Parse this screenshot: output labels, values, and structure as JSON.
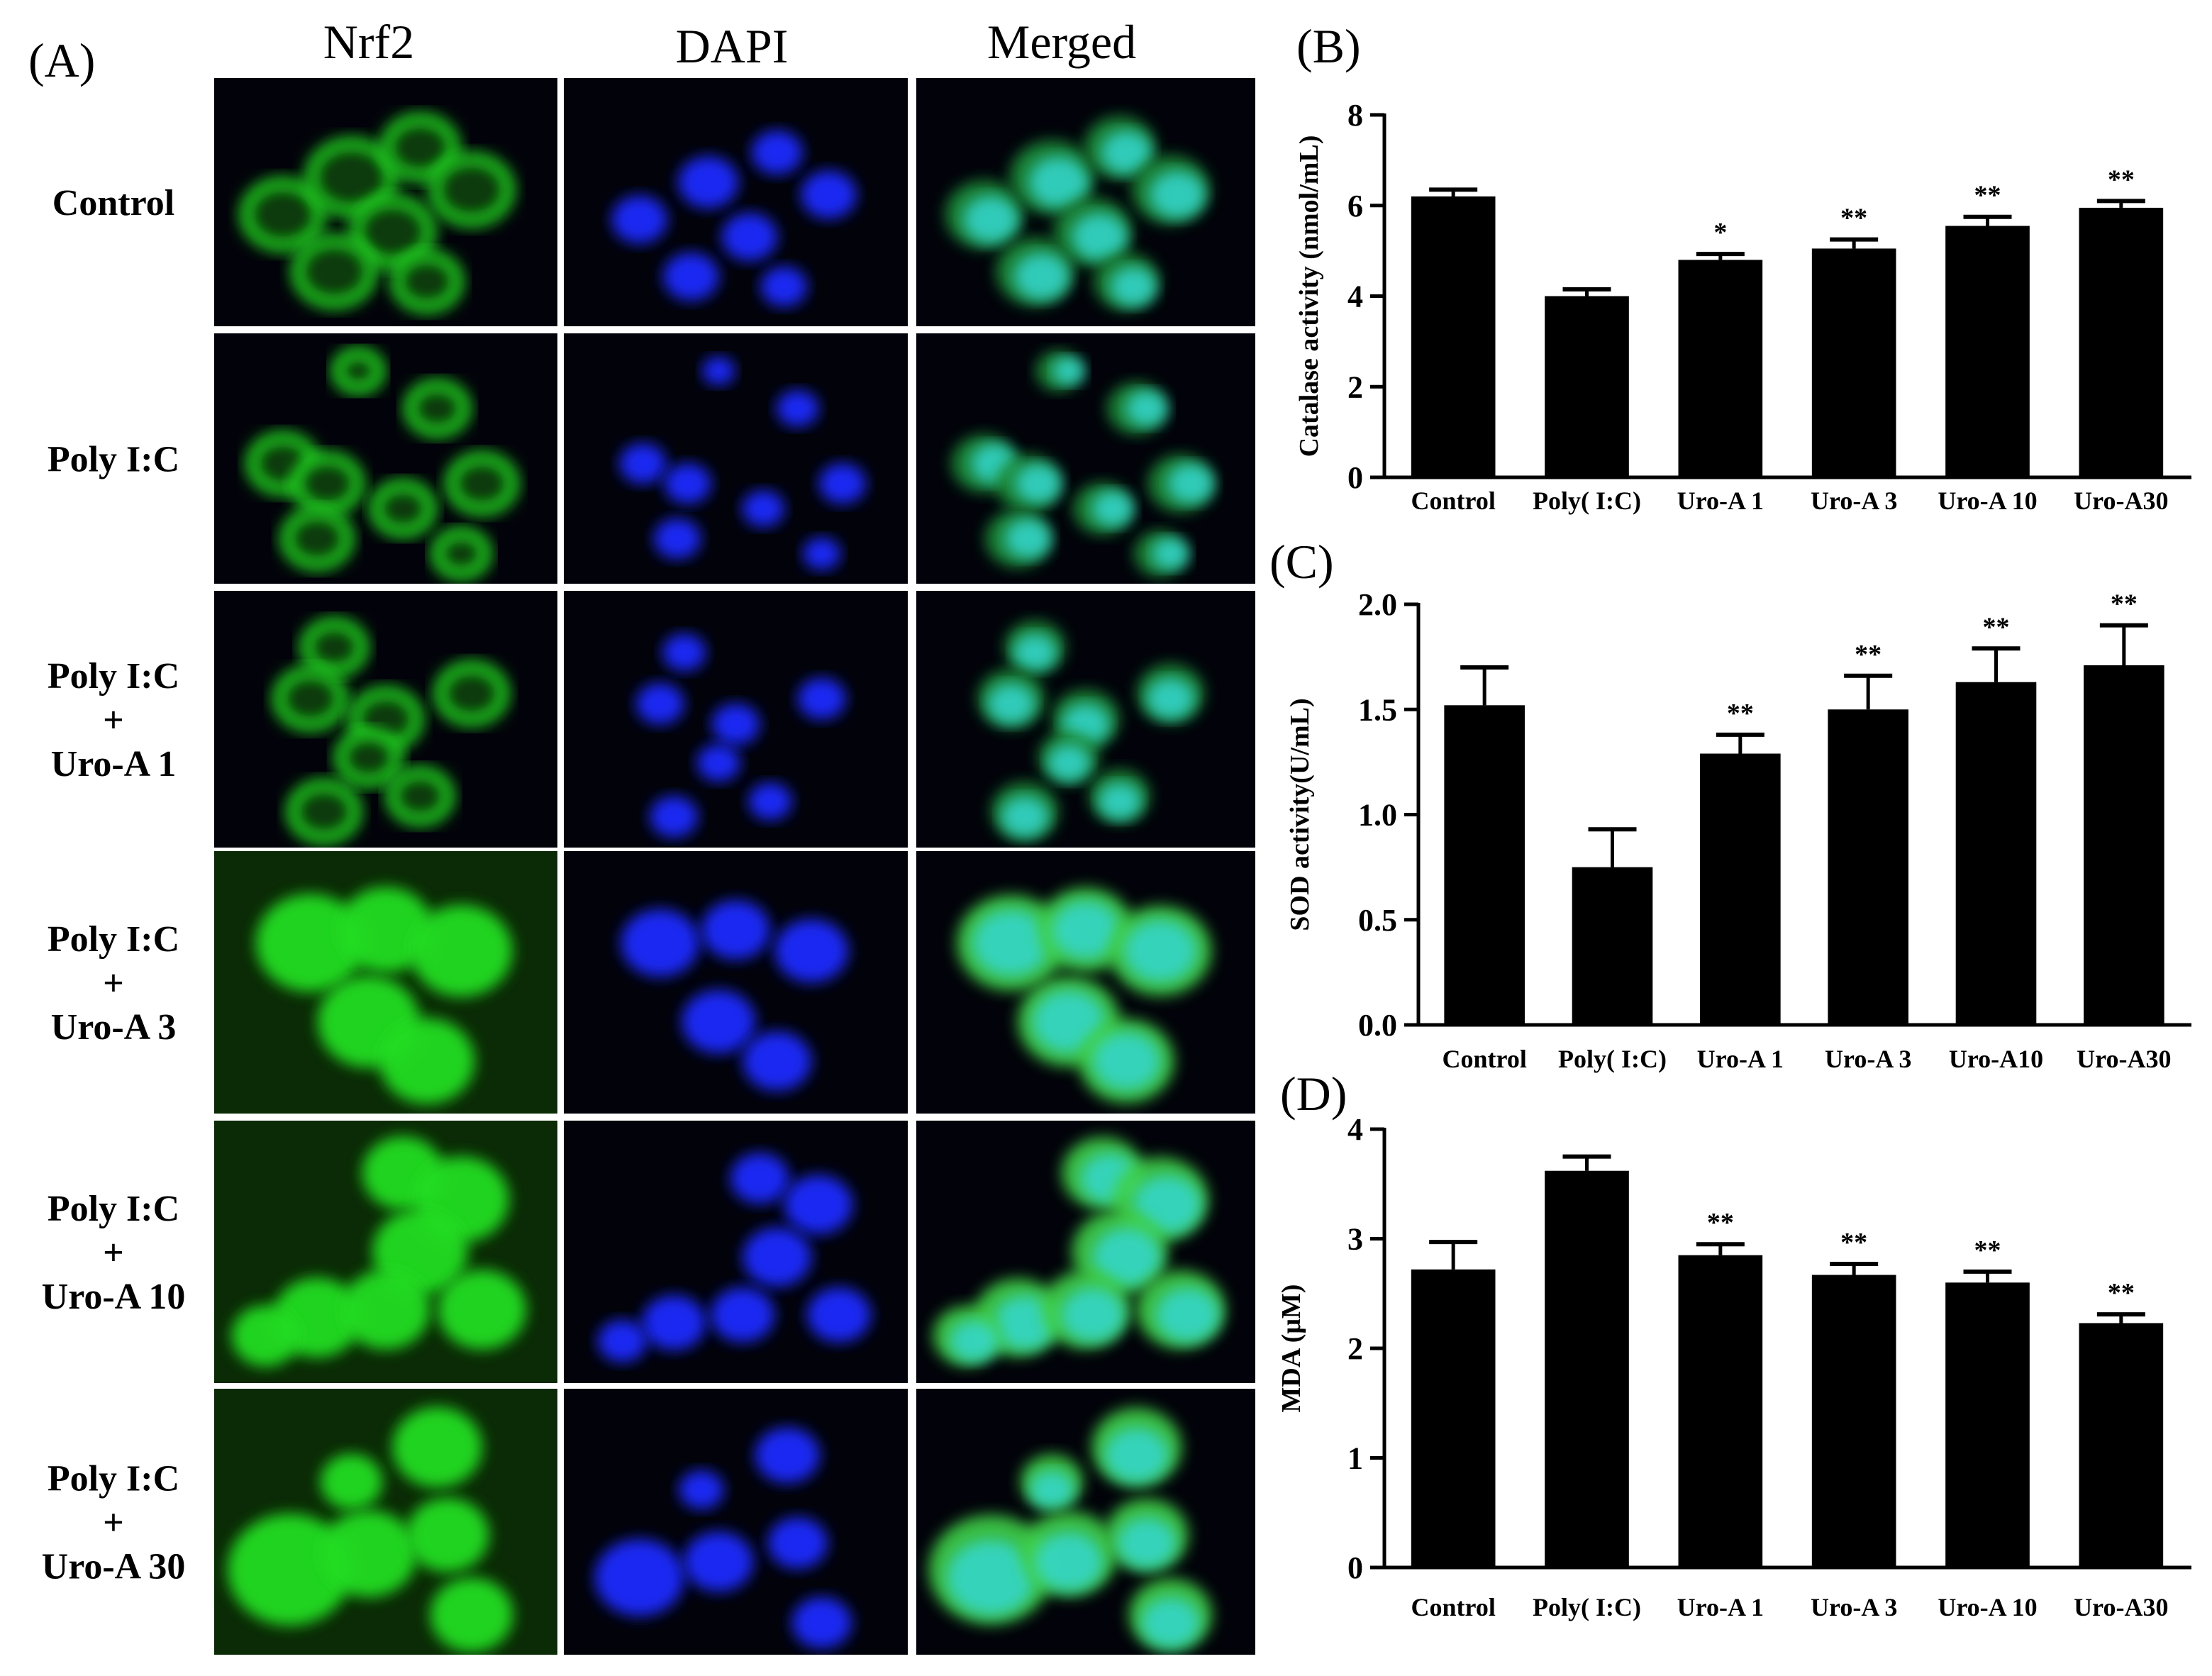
{
  "panel_a": {
    "letter": "(A)",
    "columns": [
      "Nrf2",
      "DAPI",
      "Merged"
    ],
    "rows": [
      [
        "Control"
      ],
      [
        "Poly  I:C"
      ],
      [
        "Poly I:C",
        "+",
        "Uro-A 1"
      ],
      [
        "Poly I:C",
        "+",
        "Uro-A 3"
      ],
      [
        "Poly I:C",
        "+",
        "Uro-A  10"
      ],
      [
        "Poly  I:C",
        "+",
        "Uro-A 30"
      ]
    ],
    "stain_colors": {
      "Nrf2": "#22dd22",
      "DAPI": "#1a2cff",
      "Merged": "#35d8d0"
    }
  },
  "chart_data": [
    {
      "panel": "(B)",
      "type": "bar",
      "categories": [
        "Control",
        "Poly( I:C)",
        "Uro-A 1",
        "Uro-A 3",
        "Uro-A 10",
        "Uro-A30"
      ],
      "values": [
        6.2,
        4.0,
        4.8,
        5.05,
        5.55,
        5.95
      ],
      "errors": [
        0.15,
        0.15,
        0.13,
        0.2,
        0.2,
        0.15
      ],
      "significance": [
        "",
        "",
        "*",
        "**",
        "**",
        "**"
      ],
      "ylabel": "Catalase activity (nmol/mL)",
      "ylim": [
        0,
        8
      ],
      "yticks": [
        0,
        2,
        4,
        6,
        8
      ],
      "ytick_labels": [
        "0",
        "2",
        "4",
        "6",
        "8"
      ],
      "bar_color": "#000000",
      "grid": false
    },
    {
      "panel": "(C)",
      "type": "bar",
      "categories": [
        "Control",
        "Poly( I:C)",
        "Uro-A 1",
        "Uro-A 3",
        "Uro-A10",
        "Uro-A30"
      ],
      "values": [
        1.52,
        0.75,
        1.29,
        1.5,
        1.63,
        1.71
      ],
      "errors": [
        0.18,
        0.18,
        0.09,
        0.16,
        0.16,
        0.19
      ],
      "significance": [
        "",
        "",
        "**",
        "**",
        "**",
        "**"
      ],
      "ylabel": "SOD activity(U/mL)",
      "ylim": [
        0,
        2
      ],
      "yticks": [
        0,
        0.5,
        1.0,
        1.5,
        2.0
      ],
      "ytick_labels": [
        "0.0",
        "0.5",
        "1.0",
        "1.5",
        "2.0"
      ],
      "bar_color": "#000000",
      "grid": false
    },
    {
      "panel": "(D)",
      "type": "bar",
      "categories": [
        "Control",
        "Poly( I:C)",
        "Uro-A 1",
        "Uro-A 3",
        "Uro-A 10",
        "Uro-A30"
      ],
      "values": [
        2.72,
        3.62,
        2.85,
        2.67,
        2.6,
        2.23
      ],
      "errors": [
        0.25,
        0.13,
        0.1,
        0.1,
        0.1,
        0.08
      ],
      "significance": [
        "",
        "",
        "**",
        "**",
        "**",
        "**"
      ],
      "ylabel": "MDA (μM)",
      "ylim": [
        0,
        4
      ],
      "yticks": [
        0,
        1,
        2,
        3,
        4
      ],
      "ytick_labels": [
        "0",
        "1",
        "2",
        "3",
        "4"
      ],
      "bar_color": "#000000",
      "grid": false
    }
  ]
}
